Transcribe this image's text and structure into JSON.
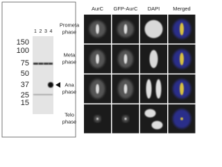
{
  "blot": {
    "lanes": [
      "1",
      "2",
      "3",
      "4"
    ],
    "markers": [
      "150",
      "100",
      "75",
      "50",
      "37",
      "25",
      "15"
    ]
  },
  "microscopy": {
    "columns": [
      "AurC",
      "GFP-AurC",
      "DAPI",
      "Merged"
    ],
    "rows": [
      [
        "Prometa",
        "phase"
      ],
      [
        "Meta",
        "phase"
      ],
      [
        "Ana",
        "phase"
      ],
      [
        "Telo",
        "phase"
      ]
    ]
  }
}
